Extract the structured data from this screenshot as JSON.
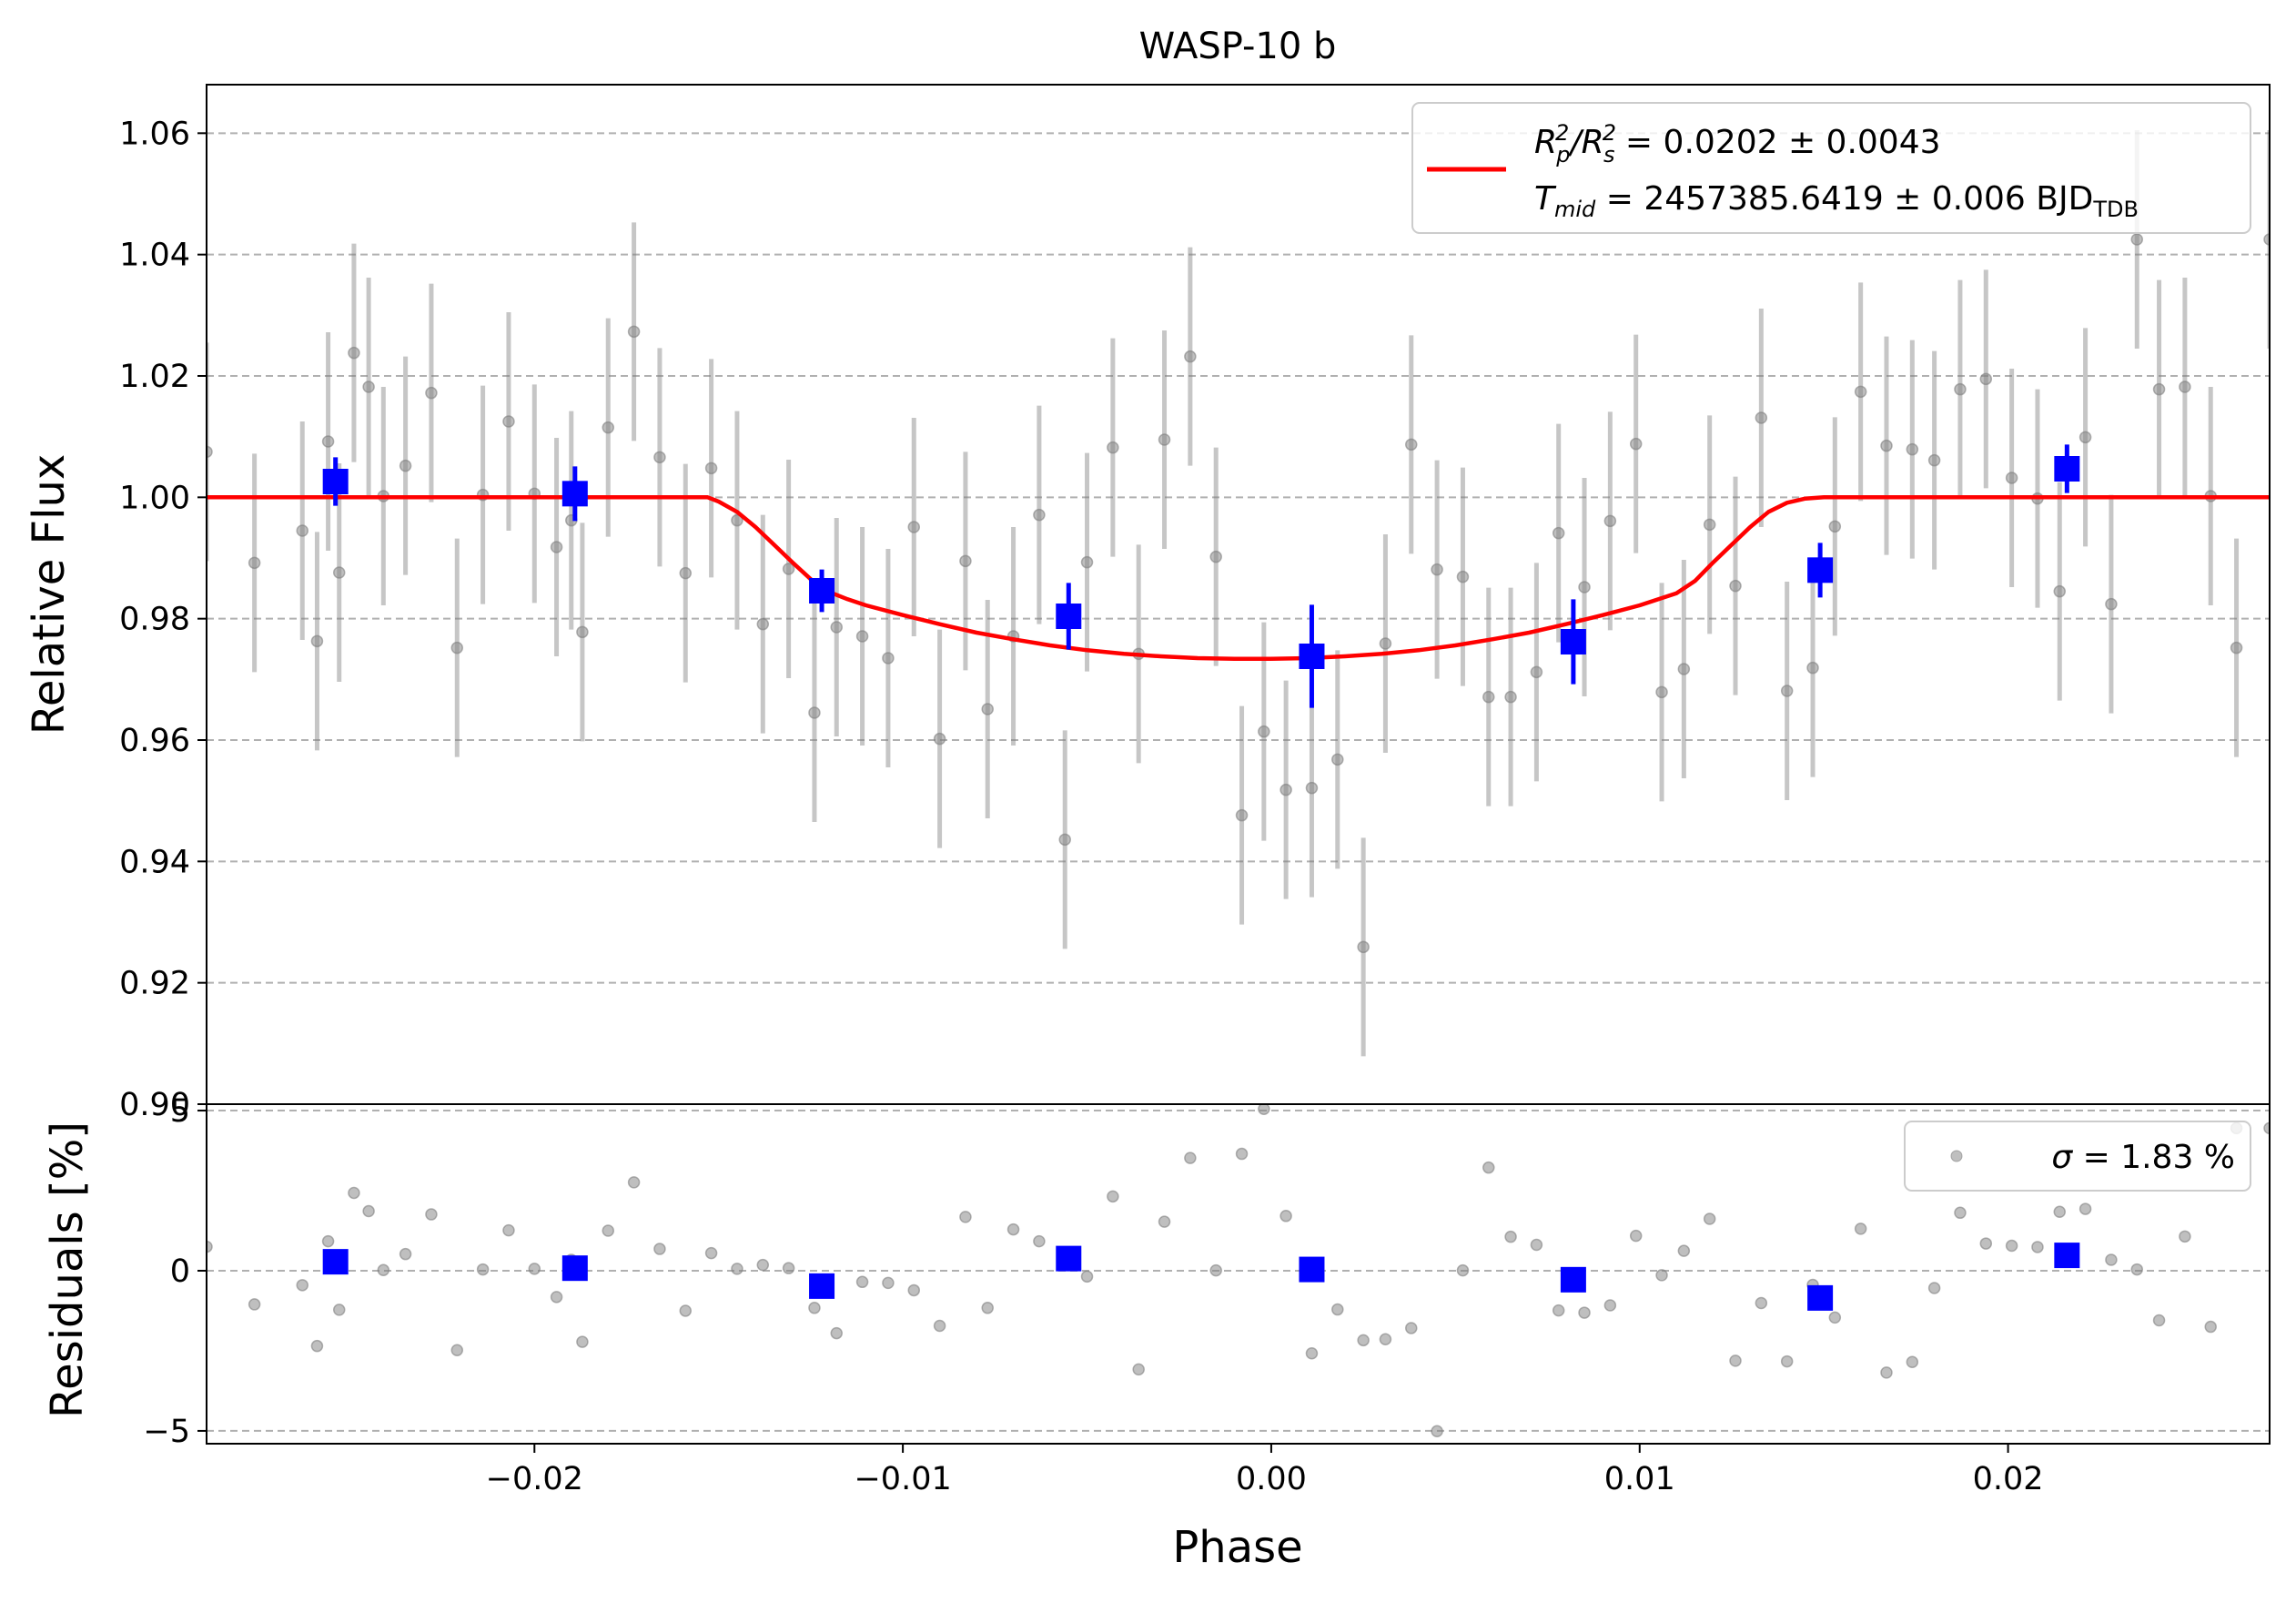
{
  "chart_data": [
    {
      "type": "scatter",
      "title": "WASP-10 b",
      "xlabel": "",
      "ylabel": "Relative Flux",
      "xlim": [
        -0.0289,
        0.0271
      ],
      "ylim": [
        0.9,
        1.068
      ],
      "grid": "horizontal dashed",
      "yticks": [
        0.9,
        0.92,
        0.94,
        0.96,
        0.98,
        1.0,
        1.02,
        1.04,
        1.06
      ],
      "ytick_labels": [
        "0.90",
        "0.92",
        "0.94",
        "0.96",
        "0.98",
        "1.00",
        "1.02",
        "1.04",
        "1.06"
      ],
      "legend": {
        "placement": "top-right",
        "line1": {
          "prefix": "R",
          "sub1": "p",
          "sup1": "2",
          "mid": "/R",
          "sub2": "s",
          "sup2": "2",
          "value": " = 0.0202 ± 0.0043"
        },
        "line2": {
          "prefix": "T",
          "sub1": "mid",
          "value": " = 2457385.6419 ± 0.006 BJD",
          "sub2": "TDB"
        },
        "color": "#ff0000"
      },
      "model": {
        "type": "line",
        "color": "#ff0000",
        "x": [
          -0.0289,
          -0.0153,
          -0.015,
          -0.0145,
          -0.014,
          -0.0135,
          -0.013,
          -0.0125,
          -0.012,
          -0.0115,
          -0.011,
          -0.01,
          -0.009,
          -0.008,
          -0.007,
          -0.006,
          -0.005,
          -0.004,
          -0.003,
          -0.002,
          -0.001,
          0.0,
          0.001,
          0.002,
          0.003,
          0.004,
          0.005,
          0.006,
          0.007,
          0.008,
          0.009,
          0.01,
          0.011,
          0.0115,
          0.012,
          0.0125,
          0.013,
          0.0135,
          0.014,
          0.0145,
          0.015,
          0.0153,
          0.0271
        ],
        "y": [
          1.0,
          1.0,
          0.9993,
          0.9976,
          0.9951,
          0.9922,
          0.9893,
          0.9865,
          0.9844,
          0.9832,
          0.9822,
          0.9806,
          0.9791,
          0.9777,
          0.9766,
          0.9756,
          0.9748,
          0.9742,
          0.9738,
          0.9735,
          0.9734,
          0.9734,
          0.9735,
          0.9738,
          0.9742,
          0.9748,
          0.9756,
          0.9766,
          0.9777,
          0.9791,
          0.9806,
          0.9822,
          0.9842,
          0.9862,
          0.9893,
          0.9922,
          0.9951,
          0.9976,
          0.9991,
          0.9998,
          1.0,
          1.0,
          1.0
        ]
      },
      "raw": {
        "color": "#808080",
        "x": [
          -0.0289,
          -0.0276,
          -0.0263,
          -0.0259,
          -0.0256,
          -0.0253,
          -0.0249,
          -0.0245,
          -0.0241,
          -0.0235,
          -0.0228,
          -0.0221,
          -0.0214,
          -0.0207,
          -0.02,
          -0.0194,
          -0.019,
          -0.0187,
          -0.018,
          -0.0173,
          -0.0166,
          -0.0159,
          -0.0152,
          -0.0145,
          -0.0138,
          -0.0131,
          -0.0124,
          -0.0118,
          -0.0111,
          -0.0104,
          -0.0097,
          -0.009,
          -0.0083,
          -0.0077,
          -0.007,
          -0.0063,
          -0.0056,
          -0.005,
          -0.0043,
          -0.0036,
          -0.0029,
          -0.0022,
          -0.0015,
          -0.0008,
          -0.0002,
          0.0004,
          0.0011,
          0.0018,
          0.0025,
          0.0031,
          0.0038,
          0.0045,
          0.0052,
          0.0059,
          0.0065,
          0.0072,
          0.0078,
          0.0085,
          0.0092,
          0.0099,
          0.0106,
          0.0112,
          0.0119,
          0.0126,
          0.0133,
          0.014,
          0.0147,
          0.0153,
          0.016,
          0.0167,
          0.0174,
          0.018,
          0.0187,
          0.0194,
          0.0201,
          0.0208,
          0.0214,
          0.0221,
          0.0228,
          0.0235,
          0.0241,
          0.0248,
          0.0255,
          0.0262,
          0.0271
        ],
        "y": [
          1.0075,
          0.9892,
          0.9945,
          0.9763,
          1.0092,
          0.9876,
          1.0238,
          1.0182,
          1.0002,
          1.0052,
          1.0172,
          0.9752,
          1.0004,
          1.0125,
          1.0006,
          0.9918,
          0.9962,
          0.9778,
          1.0115,
          1.0273,
          1.0066,
          0.9875,
          1.0048,
          0.9962,
          0.9791,
          0.9882,
          0.9645,
          0.9786,
          0.9771,
          0.9735,
          0.9951,
          0.9602,
          0.9895,
          0.9651,
          0.9771,
          0.9971,
          0.9436,
          0.9893,
          1.0082,
          0.9742,
          1.0095,
          1.0232,
          0.9902,
          0.9476,
          0.9614,
          0.9518,
          0.9521,
          0.9568,
          0.9259,
          0.9759,
          1.0087,
          0.9881,
          0.9869,
          0.9671,
          0.9671,
          0.9712,
          0.9941,
          0.9852,
          0.9961,
          1.0088,
          0.9679,
          0.9717,
          0.9955,
          0.9854,
          1.0131,
          0.9681,
          0.9719,
          0.9952,
          1.0174,
          1.0085,
          1.0079,
          1.0061,
          1.0178,
          1.0195,
          1.0032,
          0.9998,
          0.9845,
          1.0099,
          0.9824,
          1.0425,
          1.0178,
          1.0182,
          1.0002,
          0.9752,
          1.0425
        ],
        "err": [
          0.018,
          0.018,
          0.018,
          0.018,
          0.018,
          0.018,
          0.018,
          0.018,
          0.018,
          0.018,
          0.018,
          0.018,
          0.018,
          0.018,
          0.018,
          0.018,
          0.018,
          0.018,
          0.018,
          0.018,
          0.018,
          0.018,
          0.018,
          0.018,
          0.018,
          0.018,
          0.018,
          0.018,
          0.018,
          0.018,
          0.018,
          0.018,
          0.018,
          0.018,
          0.018,
          0.018,
          0.018,
          0.018,
          0.018,
          0.018,
          0.018,
          0.018,
          0.018,
          0.018,
          0.018,
          0.018,
          0.018,
          0.018,
          0.018,
          0.018,
          0.018,
          0.018,
          0.018,
          0.018,
          0.018,
          0.018,
          0.018,
          0.018,
          0.018,
          0.018,
          0.018,
          0.018,
          0.018,
          0.018,
          0.018,
          0.018,
          0.018,
          0.018,
          0.018,
          0.018,
          0.018,
          0.018,
          0.018,
          0.018,
          0.018,
          0.018,
          0.018,
          0.018,
          0.018,
          0.018,
          0.018,
          0.018,
          0.018,
          0.018,
          0.018
        ]
      },
      "binned": {
        "color": "#0000ff",
        "x": [
          -0.0254,
          -0.0189,
          -0.0122,
          -0.0055,
          0.0011,
          0.0082,
          0.0149,
          0.0216
        ],
        "y": [
          1.0026,
          1.0006,
          0.9846,
          0.9804,
          0.9738,
          0.9762,
          0.988,
          1.0047
        ],
        "err": [
          0.004,
          0.0045,
          0.0035,
          0.0055,
          0.0085,
          0.007,
          0.0045,
          0.004
        ]
      }
    },
    {
      "type": "scatter",
      "title": "",
      "xlabel": "Phase",
      "ylabel": "Residuals [%]",
      "xlim": [
        -0.0289,
        0.0271
      ],
      "ylim": [
        -5.4,
        5.2
      ],
      "grid": "horizontal dashed",
      "xticks": [
        -0.02,
        -0.01,
        0.0,
        0.01,
        0.02
      ],
      "xtick_labels": [
        "−0.02",
        "−0.01",
        "0.00",
        "0.01",
        "0.02"
      ],
      "yticks": [
        -5,
        0,
        5
      ],
      "ytick_labels": [
        "−5",
        "0",
        "5"
      ],
      "legend": {
        "placement": "top-right",
        "sigma_symbol": "σ",
        "text": " = 1.83 %"
      },
      "raw": {
        "color": "#808080",
        "x": [
          -0.0289,
          -0.0276,
          -0.0263,
          -0.0259,
          -0.0256,
          -0.0253,
          -0.0249,
          -0.0245,
          -0.0241,
          -0.0235,
          -0.0228,
          -0.0221,
          -0.0214,
          -0.0207,
          -0.02,
          -0.0194,
          -0.019,
          -0.0187,
          -0.018,
          -0.0173,
          -0.0166,
          -0.0159,
          -0.0152,
          -0.0145,
          -0.0138,
          -0.0131,
          -0.0124,
          -0.0118,
          -0.0111,
          -0.0104,
          -0.0097,
          -0.009,
          -0.0083,
          -0.0077,
          -0.007,
          -0.0063,
          -0.0056,
          -0.005,
          -0.0043,
          -0.0036,
          -0.0029,
          -0.0022,
          -0.0015,
          -0.0008,
          -0.0002,
          0.0004,
          0.0011,
          0.0018,
          0.0025,
          0.0031,
          0.0038,
          0.0045,
          0.0052,
          0.0059,
          0.0065,
          0.0072,
          0.0078,
          0.0085,
          0.0092,
          0.0099,
          0.0106,
          0.0112,
          0.0119,
          0.0126,
          0.0133,
          0.014,
          0.0147,
          0.0153,
          0.016,
          0.0167,
          0.0174,
          0.018,
          0.0187,
          0.0194,
          0.0201,
          0.0208,
          0.0214,
          0.0221,
          0.0228,
          0.0235,
          0.0241,
          0.0248,
          0.0255,
          0.0262,
          0.0271
        ],
        "y": [
          0.75,
          -1.05,
          -0.45,
          -2.35,
          0.92,
          -1.22,
          2.43,
          1.86,
          0.02,
          0.52,
          1.76,
          -2.48,
          0.04,
          1.26,
          0.06,
          -0.82,
          0.34,
          -2.22,
          1.25,
          2.76,
          0.68,
          -1.25,
          0.55,
          0.06,
          0.18,
          0.08,
          -1.16,
          -1.95,
          -0.35,
          -0.38,
          -0.61,
          -1.72,
          1.68,
          -1.16,
          1.29,
          0.92,
          0.44,
          -0.18,
          2.32,
          -3.08,
          1.53,
          3.52,
          0.01,
          3.65,
          5.05,
          1.71,
          -2.58,
          -1.21,
          -2.17,
          -2.14,
          -1.79,
          -5.01,
          0.01,
          3.22,
          1.06,
          0.81,
          -1.24,
          -1.31,
          -1.08,
          1.09,
          -0.14,
          0.62,
          1.62,
          -2.81,
          -1.01,
          -2.83,
          -0.44,
          -1.46,
          1.31,
          -3.18,
          -2.85,
          -0.54,
          1.81,
          0.85,
          0.78,
          0.74,
          1.84,
          1.93,
          0.34,
          0.04,
          -1.55,
          1.07,
          -1.75,
          4.45,
          4.45
        ]
      },
      "binned": {
        "color": "#0000ff",
        "x": [
          -0.0254,
          -0.0189,
          -0.0122,
          -0.0055,
          0.0011,
          0.0082,
          0.0149,
          0.0216
        ],
        "y": [
          0.28,
          0.08,
          -0.48,
          0.38,
          0.04,
          -0.28,
          -0.85,
          0.48
        ]
      }
    }
  ]
}
